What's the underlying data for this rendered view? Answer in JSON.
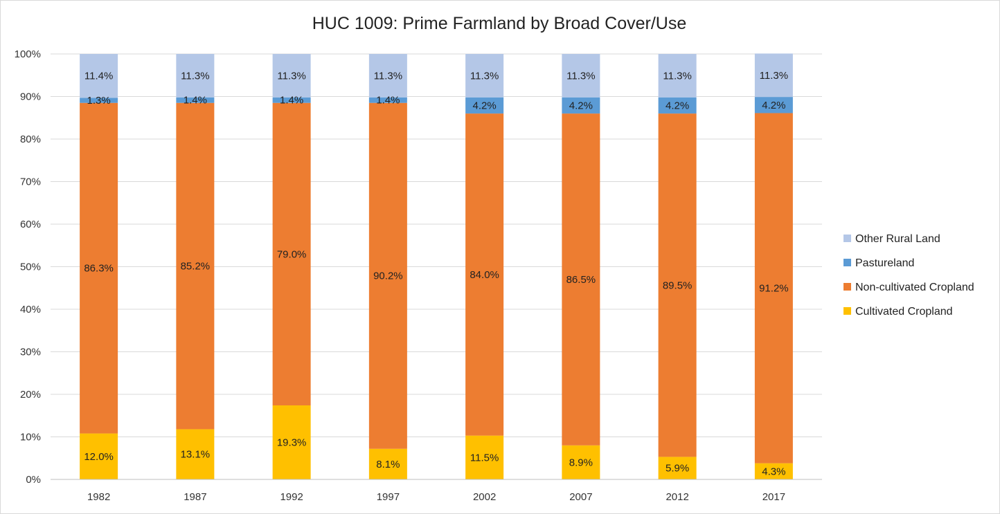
{
  "chart_data": {
    "type": "bar",
    "stacked": true,
    "title": "HUC 1009:  Prime Farmland by Broad Cover/Use",
    "xlabel": "",
    "ylabel": "",
    "ylim": [
      0,
      100
    ],
    "y_tick_labels": [
      "0%",
      "10%",
      "20%",
      "30%",
      "40%",
      "50%",
      "60%",
      "70%",
      "80%",
      "90%",
      "100%"
    ],
    "grid": true,
    "legend_position": "right",
    "categories": [
      "1982",
      "1987",
      "1992",
      "1997",
      "2002",
      "2007",
      "2012",
      "2017"
    ],
    "series": [
      {
        "name": "Cultivated Cropland",
        "color": "#ffc000",
        "values": [
          10.8,
          11.8,
          17.4,
          7.2,
          10.3,
          8.0,
          5.3,
          3.8
        ],
        "labels": [
          "12.0%",
          "13.1%",
          "19.3%",
          "8.1%",
          "11.5%",
          "8.9%",
          "5.9%",
          "4.3%"
        ]
      },
      {
        "name": "Non-cultivated Cropland",
        "color": "#ed7d31",
        "values": [
          77.7,
          76.7,
          71.1,
          81.3,
          75.7,
          78.0,
          80.7,
          82.3
        ],
        "labels": [
          "86.3%",
          "85.2%",
          "79.0%",
          "90.2%",
          "84.0%",
          "86.5%",
          "89.5%",
          "91.2%"
        ]
      },
      {
        "name": "Pastureland",
        "color": "#5b9bd5",
        "values": [
          1.2,
          1.3,
          1.3,
          1.3,
          3.8,
          3.8,
          3.8,
          3.8
        ],
        "labels": [
          "1.3%",
          "1.4%",
          "1.4%",
          "1.4%",
          "4.2%",
          "4.2%",
          "4.2%",
          "4.2%"
        ]
      },
      {
        "name": "Other Rural Land",
        "color": "#b4c7e7",
        "values": [
          10.3,
          10.2,
          10.2,
          10.2,
          10.2,
          10.2,
          10.2,
          10.2
        ],
        "labels": [
          "11.4%",
          "11.3%",
          "11.3%",
          "11.3%",
          "11.3%",
          "11.3%",
          "11.3%",
          "11.3%"
        ]
      }
    ]
  }
}
